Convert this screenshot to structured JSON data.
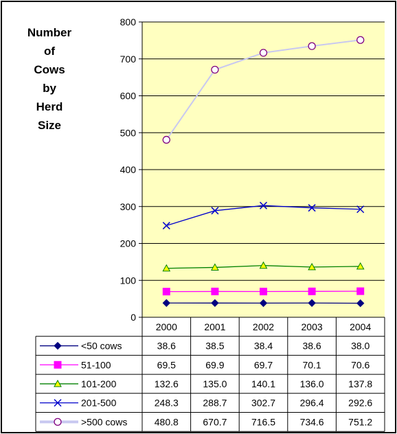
{
  "chart_data": {
    "type": "line",
    "ylabel_lines": [
      "Number",
      "of",
      "Cows",
      "by",
      "Herd",
      "Size"
    ],
    "categories": [
      "2000",
      "2001",
      "2002",
      "2003",
      "2004"
    ],
    "ylim": [
      0,
      800
    ],
    "yticks": [
      "0",
      "100",
      "200",
      "300",
      "400",
      "500",
      "600",
      "700",
      "800"
    ],
    "grid": true,
    "legend_placement": "data table below plot",
    "series": [
      {
        "name": "<50 cows",
        "values": [
          "38.6",
          "38.5",
          "38.4",
          "38.6",
          "38.0"
        ],
        "color": "#000080",
        "marker": "diamond"
      },
      {
        "name": "51-100",
        "values": [
          "69.5",
          "69.9",
          "69.7",
          "70.1",
          "70.6"
        ],
        "color": "#ff00ff",
        "marker": "square"
      },
      {
        "name": "101-200",
        "values": [
          "132.6",
          "135.0",
          "140.1",
          "136.0",
          "137.8"
        ],
        "color": "#008000",
        "marker": "triangle"
      },
      {
        "name": "201-500",
        "values": [
          "248.3",
          "288.7",
          "302.7",
          "296.4",
          "292.6"
        ],
        "color": "#0000cc",
        "marker": "x"
      },
      {
        "name": ">500 cows",
        "values": [
          "480.8",
          "670.7",
          "716.5",
          "734.6",
          "751.2"
        ],
        "color": "#c8c8f0",
        "marker": "circle",
        "marker_color": "#800080"
      }
    ],
    "plot_background": "#ffffc0"
  }
}
